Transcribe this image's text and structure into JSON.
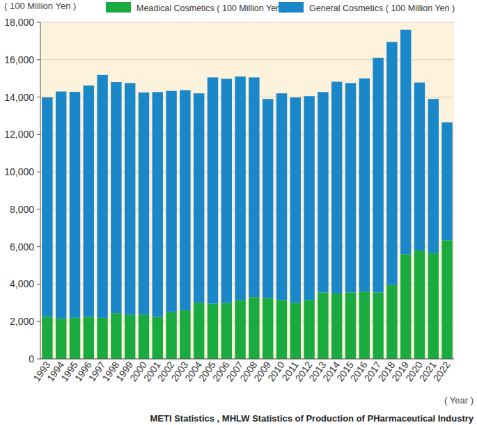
{
  "chart_data": {
    "type": "bar",
    "stacked": true,
    "grid": true,
    "legend": "top",
    "y_axis_label": "( 100 Million Yen )",
    "x_axis_label": "( Year )",
    "source": "METI Statistics , MHLW Statistics of Production of PHarmaceutical Industry",
    "categories": [
      "1993",
      "1994",
      "1995",
      "1996",
      "1997",
      "1998",
      "1999",
      "2000",
      "2001",
      "2002",
      "2003",
      "2004",
      "2005",
      "2006",
      "2007",
      "2008",
      "2009",
      "2010",
      "2011",
      "2012",
      "2013",
      "2014",
      "2015",
      "2016",
      "2017",
      "2018",
      "2019",
      "2020",
      "2021",
      "2022"
    ],
    "series": [
      {
        "name": "Meadical Cosmetics ( 100 Million Yen )",
        "color": "#1aab40",
        "values": [
          2250,
          2150,
          2200,
          2250,
          2200,
          2450,
          2350,
          2350,
          2250,
          2500,
          2600,
          3000,
          2950,
          3000,
          3150,
          3300,
          3250,
          3150,
          3000,
          3150,
          3550,
          3500,
          3550,
          3600,
          3550,
          3950,
          5600,
          5800,
          5650,
          6350
        ]
      },
      {
        "name": "General Cosmetics ( 100 Million Yen )",
        "color": "#1a87c9",
        "values": [
          11730,
          12150,
          12080,
          12370,
          12980,
          12350,
          12400,
          11900,
          12020,
          11830,
          11770,
          11200,
          12100,
          11980,
          11950,
          11750,
          10650,
          11050,
          10980,
          10900,
          10720,
          11320,
          11200,
          11400,
          12550,
          13000,
          12000,
          8980,
          8250,
          6300
        ]
      }
    ],
    "ylim": [
      0,
      18000
    ],
    "yticks": [
      {
        "value": 0,
        "label": "0"
      },
      {
        "value": 2000,
        "label": "2,000"
      },
      {
        "value": 4000,
        "label": "4,000"
      },
      {
        "value": 6000,
        "label": "6,000"
      },
      {
        "value": 8000,
        "label": "8,000"
      },
      {
        "value": 10000,
        "label": "10,000"
      },
      {
        "value": 12000,
        "label": "12,000"
      },
      {
        "value": 14000,
        "label": "14,000"
      },
      {
        "value": 16000,
        "label": "16,000"
      },
      {
        "value": 18000,
        "label": "18,000"
      }
    ]
  }
}
